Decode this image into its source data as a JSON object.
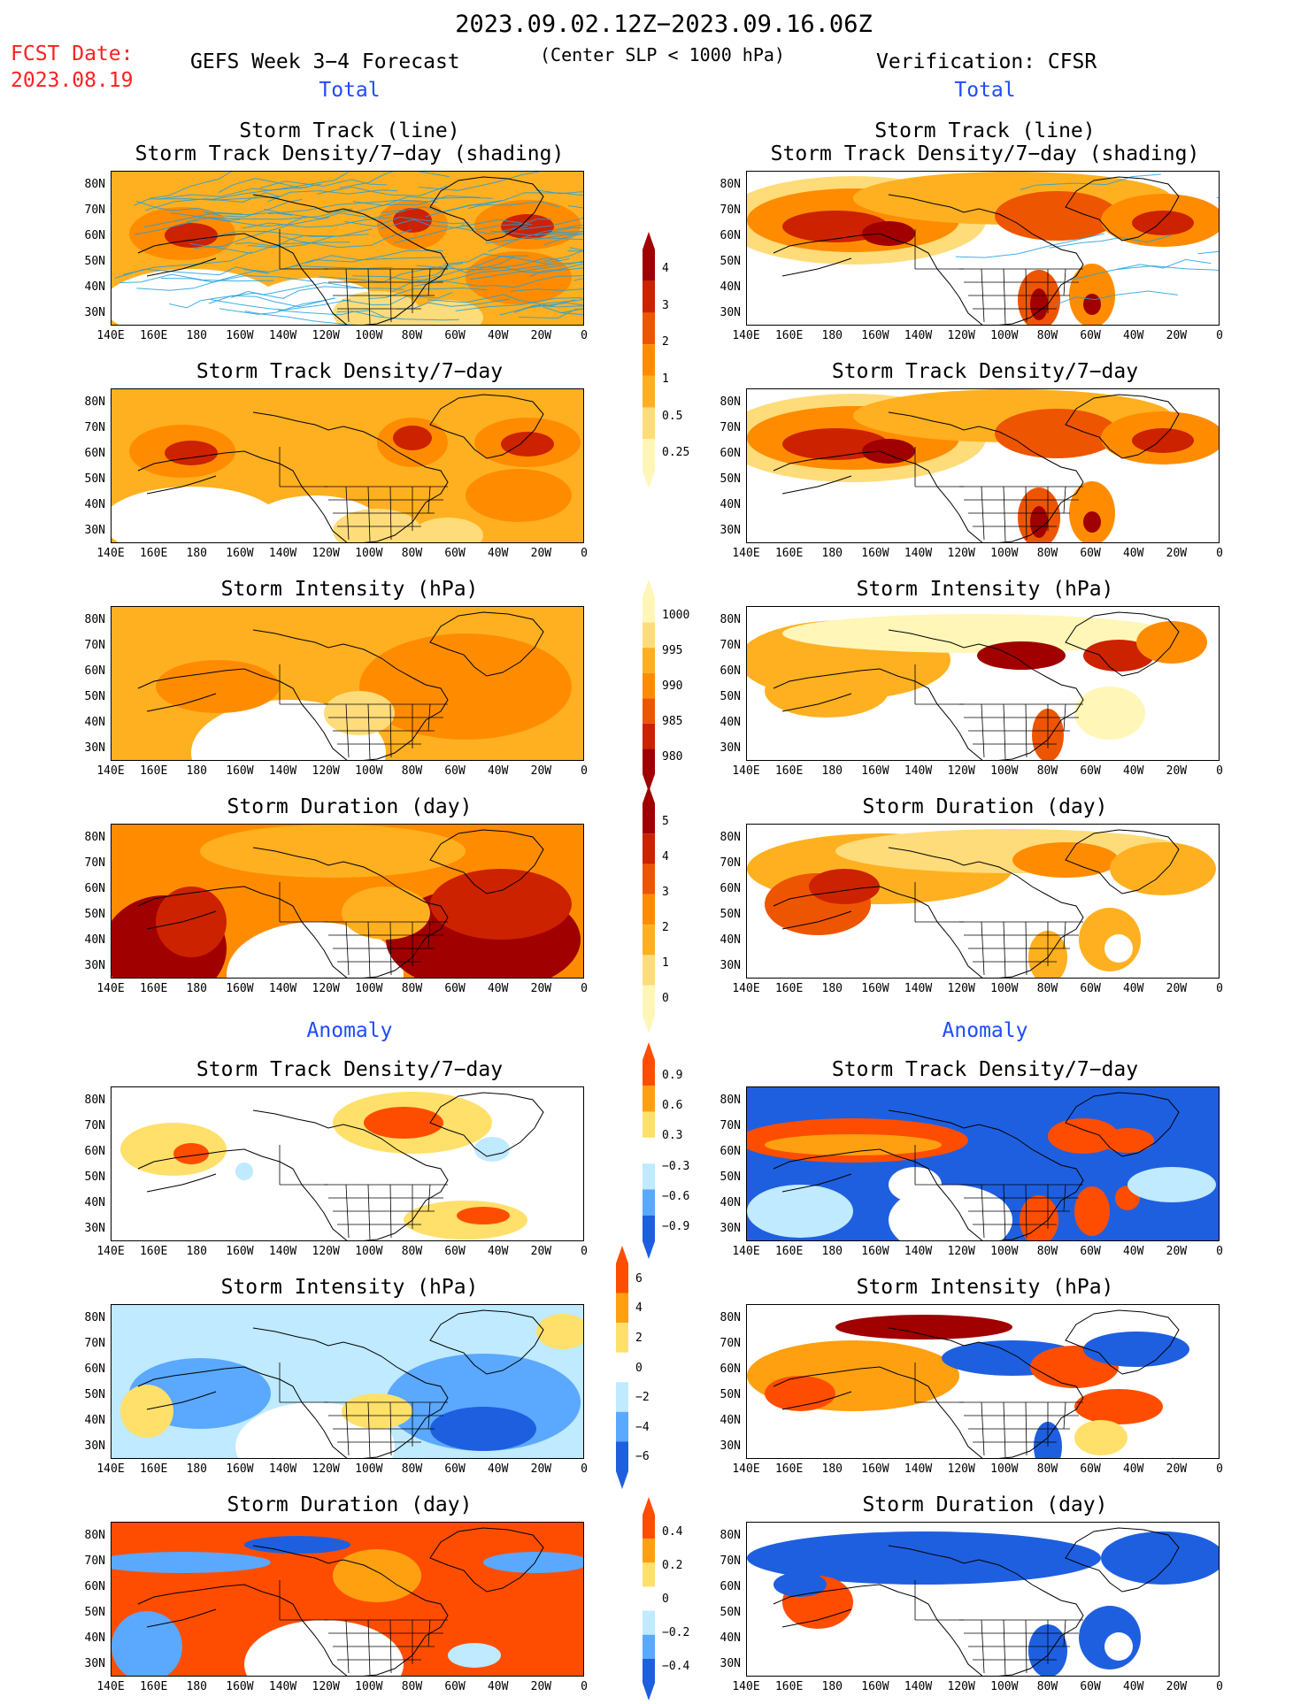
{
  "header": {
    "period": "2023.09.02.12Z−2023.09.16.06Z",
    "fcst_label": "FCST Date:",
    "fcst_date": "2023.08.19",
    "left_title": "GEFS Week 3−4 Forecast",
    "criterion": "(Center SLP < 1000 hPa)",
    "right_title": "Verification: CFSR"
  },
  "sections": {
    "total": "Total",
    "anomaly": "Anomaly"
  },
  "panel_titles": {
    "track_line": "Storm Track (line)",
    "track_density_shading": "Storm Track Density/7−day (shading)",
    "track_density": "Storm Track Density/7−day",
    "intensity": "Storm Intensity (hPa)",
    "duration": "Storm Duration (day)"
  },
  "axes": {
    "lat_labels": [
      "80N",
      "70N",
      "60N",
      "50N",
      "40N",
      "30N"
    ],
    "lon_labels": [
      "140E",
      "160E",
      "180",
      "160W",
      "140W",
      "120W",
      "100W",
      "80W",
      "60W",
      "40W",
      "20W",
      "0"
    ]
  },
  "colorbars": {
    "density_total": [
      "4",
      "3",
      "2",
      "1",
      "0.5",
      "0.25"
    ],
    "intensity_total": [
      "1000",
      "995",
      "990",
      "985",
      "980"
    ],
    "duration_total": [
      "5",
      "4",
      "3",
      "2",
      "1",
      "0"
    ],
    "density_anom": [
      "0.9",
      "0.6",
      "0.3",
      "−0.3",
      "−0.6",
      "−0.9"
    ],
    "intensity_anom": [
      "6",
      "4",
      "2",
      "0",
      "−2",
      "−4",
      "−6"
    ],
    "duration_anom": [
      "0.4",
      "0.2",
      "0",
      "−0.2",
      "−0.4"
    ]
  },
  "colors": {
    "total_scale": [
      "#fff6b8",
      "#ffdc7a",
      "#ffb020",
      "#ff8c00",
      "#ee5500",
      "#cc2200",
      "#a00000"
    ],
    "anom_warm": [
      "#ffe06a",
      "#ffa010",
      "#ff4d00"
    ],
    "anom_cool": [
      "#bfeaff",
      "#5aa8ff",
      "#1e5fe0"
    ],
    "track_line": "#1ea0e0",
    "title_red": "#ff2020",
    "section_blue": "#1f4bff"
  }
}
